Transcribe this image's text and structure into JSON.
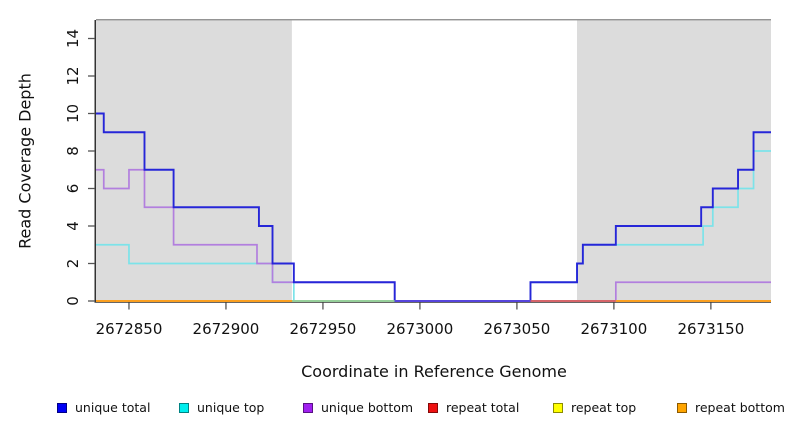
{
  "chart_data": {
    "type": "line",
    "subtype": "step-coverage",
    "title": "",
    "xlabel": "Coordinate in Reference Genome",
    "ylabel": "Read Coverage Depth",
    "x_range": [
      2672833,
      2673181
    ],
    "y_range": [
      0,
      15
    ],
    "x_ticks": [
      2672850,
      2672900,
      2672950,
      2673000,
      2673050,
      2673100,
      2673150
    ],
    "y_ticks": [
      0,
      2,
      4,
      6,
      8,
      10,
      12,
      14
    ],
    "grid": "off",
    "background": "#ffffff",
    "shade_color": "#DCDCDC",
    "axis_color": "#333333",
    "tick_color": "#555555",
    "top_border": {
      "y": 15,
      "color": "#858585"
    },
    "shaded_regions": [
      {
        "x0": 2672833,
        "x1": 2672934
      },
      {
        "x0": 2673081,
        "x1": 2673181
      }
    ],
    "series": [
      {
        "name": "repeat total",
        "line_color": "#D85A5A",
        "legend_color": "#EE1111",
        "steps": [
          [
            2672833,
            0
          ],
          [
            2673181,
            0
          ]
        ]
      },
      {
        "name": "repeat top",
        "line_color": "#E8E85A",
        "legend_color": "#FFFF00",
        "steps": [
          [
            2672833,
            0
          ],
          [
            2673181,
            0
          ]
        ]
      },
      {
        "name": "repeat bottom",
        "line_color": "#FB9E1E",
        "legend_color": "#FFA500",
        "steps": [
          [
            2672833,
            0
          ],
          [
            2673181,
            0
          ]
        ]
      },
      {
        "name": "unique top",
        "line_color": "#7CE3E9",
        "legend_color": "#00EEEE",
        "steps": [
          [
            2672833,
            3
          ],
          [
            2672850,
            2
          ],
          [
            2672924,
            1
          ],
          [
            2672935,
            0
          ],
          [
            2673057,
            1
          ],
          [
            2673081,
            2
          ],
          [
            2673084,
            3
          ],
          [
            2673146,
            4
          ],
          [
            2673151,
            5
          ],
          [
            2673164,
            6
          ],
          [
            2673172,
            8
          ],
          [
            2673181,
            8
          ]
        ]
      },
      {
        "name": "unique bottom",
        "line_color": "#B27FDE",
        "legend_color": "#A020F0",
        "steps": [
          [
            2672833,
            7
          ],
          [
            2672837,
            6
          ],
          [
            2672850,
            7
          ],
          [
            2672858,
            5
          ],
          [
            2672873,
            3
          ],
          [
            2672916,
            2
          ],
          [
            2672924,
            1
          ],
          [
            2672987,
            0
          ],
          [
            2673101,
            1
          ],
          [
            2673181,
            1
          ]
        ]
      },
      {
        "name": "unique total",
        "line_color": "#2626D8",
        "legend_color": "#0000F5",
        "steps": [
          [
            2672833,
            10
          ],
          [
            2672837,
            9
          ],
          [
            2672858,
            7
          ],
          [
            2672873,
            5
          ],
          [
            2672917,
            4
          ],
          [
            2672924,
            2
          ],
          [
            2672935,
            1
          ],
          [
            2672987,
            0
          ],
          [
            2673057,
            1
          ],
          [
            2673081,
            2
          ],
          [
            2673084,
            3
          ],
          [
            2673101,
            4
          ],
          [
            2673145,
            5
          ],
          [
            2673151,
            6
          ],
          [
            2673164,
            7
          ],
          [
            2673172,
            9
          ],
          [
            2673181,
            9
          ]
        ]
      }
    ],
    "baseline_visible_segments": [
      {
        "x0": 2672833,
        "x1": 2672934,
        "color": "#FB9E1E"
      },
      {
        "x0": 2672934,
        "x1": 2672987,
        "color": "#96CE96"
      },
      {
        "x0": 2672987,
        "x1": 2673057,
        "color": "#5E48DC"
      },
      {
        "x0": 2673057,
        "x1": 2673101,
        "color": "#D86060"
      },
      {
        "x0": 2673101,
        "x1": 2673181,
        "color": "#FB9E1E"
      }
    ],
    "legend": [
      {
        "label": "unique total",
        "color": "#0000F5"
      },
      {
        "label": "unique top",
        "color": "#00EEEE"
      },
      {
        "label": "unique bottom",
        "color": "#A020F0"
      },
      {
        "label": "repeat total",
        "color": "#EE1111"
      },
      {
        "label": "repeat top",
        "color": "#FFFF00"
      },
      {
        "label": "repeat bottom",
        "color": "#FFA500"
      }
    ],
    "legend_position": "bottom"
  }
}
